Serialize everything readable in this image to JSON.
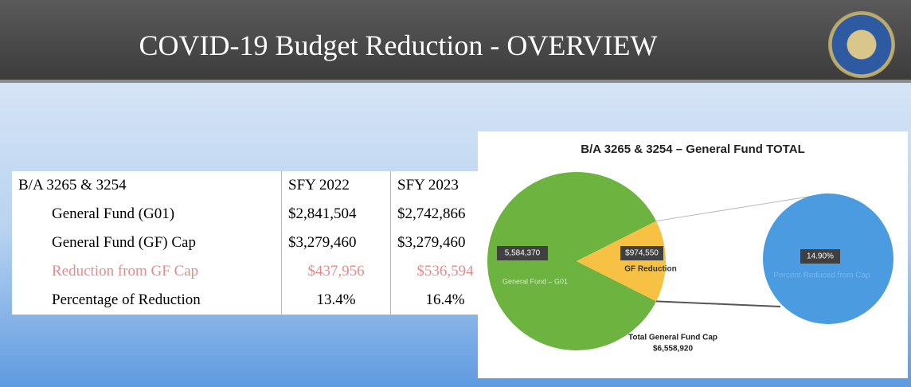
{
  "header": {
    "title": "COVID-19 Budget Reduction - OVERVIEW"
  },
  "table": {
    "header": [
      "B/A 3265 & 3254",
      "SFY 2022",
      "SFY 2023"
    ],
    "rows": [
      [
        "General Fund (G01)",
        "$2,841,504",
        "$2,742,866"
      ],
      [
        "General Fund (GF) Cap",
        "$3,279,460",
        "$3,279,460"
      ],
      [
        "Reduction from GF Cap",
        "$437,956",
        "$536,594"
      ],
      [
        "Percentage of Reduction",
        "13.4%",
        "16.4%"
      ]
    ]
  },
  "chart_data": {
    "type": "pie",
    "title": "B/A 3265 & 3254 – General Fund TOTAL",
    "categories": [
      "General Fund – G01",
      "GF Reduction"
    ],
    "values": [
      5584370,
      974550
    ],
    "value_labels": [
      "5,584,370",
      "$974,550"
    ],
    "colors": [
      "#6db33f",
      "#f7c244"
    ],
    "total": 6558920,
    "total_name": "Total General Fund Cap",
    "total_label": "$6,558,920",
    "secondary": {
      "name": "Percent Reduced from Cap",
      "value": 14.9,
      "label": "14.90%",
      "color": "#4a9be0"
    }
  }
}
